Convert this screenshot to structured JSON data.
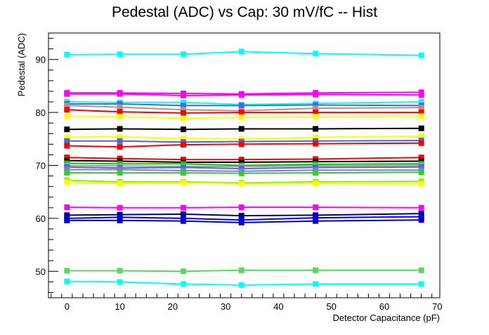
{
  "chart_data": {
    "type": "line",
    "title": "Pedestal (ADC) vs Cap: 30 mV/fC -- Hist",
    "xlabel": "Detector Capacitance (pF)",
    "ylabel": "Pedestal (ADC)",
    "xlim": [
      -3.5,
      70.5
    ],
    "ylim": [
      45,
      95
    ],
    "x_ticks": [
      0,
      10,
      20,
      30,
      40,
      50,
      60,
      70
    ],
    "y_ticks": [
      50,
      60,
      70,
      80,
      90
    ],
    "grid": false,
    "legend": "none",
    "x": [
      0,
      10,
      22,
      33,
      47,
      67
    ],
    "series": [
      {
        "color": "#00ffff",
        "values": [
          90.9,
          91.0,
          91.0,
          91.5,
          91.1,
          90.8
        ]
      },
      {
        "color": "#ff00ff",
        "values": [
          83.7,
          83.7,
          83.6,
          83.5,
          83.7,
          83.8
        ]
      },
      {
        "color": "#ff00ff",
        "values": [
          83.5,
          83.5,
          83.2,
          83.3,
          83.4,
          83.3
        ]
      },
      {
        "color": "#00ffff",
        "values": [
          82.0,
          81.9,
          81.9,
          81.5,
          81.7,
          82.0
        ]
      },
      {
        "color": "#4169e1",
        "values": [
          81.6,
          81.6,
          81.3,
          81.3,
          81.4,
          81.3
        ]
      },
      {
        "color": "#bc8f8f",
        "values": [
          81.3,
          81.0,
          80.5,
          80.3,
          80.8,
          80.9
        ]
      },
      {
        "color": "#ff0000",
        "values": [
          80.5,
          80.1,
          79.9,
          80.0,
          80.0,
          80.0
        ]
      },
      {
        "color": "#ffff00",
        "values": [
          79.3,
          79.2,
          78.9,
          79.1,
          79.2,
          79.3
        ]
      },
      {
        "color": "#000000",
        "values": [
          76.8,
          76.9,
          76.8,
          76.9,
          76.9,
          77.0
        ]
      },
      {
        "color": "#ffff00",
        "values": [
          75.3,
          75.4,
          75.1,
          75.0,
          75.3,
          75.5
        ]
      },
      {
        "color": "#4169e1",
        "values": [
          74.6,
          74.6,
          74.4,
          74.5,
          74.6,
          74.7
        ]
      },
      {
        "color": "#ff0000",
        "values": [
          73.7,
          73.5,
          73.9,
          74.0,
          74.1,
          74.2
        ]
      },
      {
        "color": "#ff0000",
        "values": [
          71.5,
          71.3,
          71.1,
          71.1,
          71.2,
          71.5
        ]
      },
      {
        "color": "#000000",
        "values": [
          70.9,
          70.8,
          70.6,
          70.6,
          70.7,
          70.8
        ]
      },
      {
        "color": "#00cc00",
        "values": [
          70.4,
          70.3,
          70.3,
          70.0,
          70.2,
          70.3
        ]
      },
      {
        "color": "#a0a0a0",
        "values": [
          70.0,
          69.9,
          69.8,
          69.8,
          69.9,
          70.0
        ]
      },
      {
        "color": "#4169e1",
        "values": [
          69.7,
          69.5,
          69.6,
          69.4,
          69.6,
          69.7
        ]
      },
      {
        "color": "#9370db",
        "values": [
          69.2,
          69.2,
          69.0,
          68.9,
          69.1,
          69.1
        ]
      },
      {
        "color": "#32cd32",
        "values": [
          68.6,
          68.6,
          68.6,
          68.5,
          68.6,
          68.7
        ]
      },
      {
        "color": "#7cfc00",
        "values": [
          67.2,
          66.9,
          66.9,
          66.7,
          66.9,
          67.0
        ]
      },
      {
        "color": "#ffff00",
        "values": [
          66.8,
          66.6,
          66.7,
          66.5,
          66.6,
          66.5
        ]
      },
      {
        "color": "#ff00ff",
        "values": [
          62.1,
          62.0,
          62.0,
          62.1,
          62.1,
          62.0
        ]
      },
      {
        "color": "#000080",
        "values": [
          60.6,
          60.7,
          60.8,
          60.5,
          60.6,
          60.9
        ]
      },
      {
        "color": "#0000ff",
        "values": [
          60.0,
          60.2,
          60.0,
          59.7,
          60.1,
          60.3
        ]
      },
      {
        "color": "#0000cc",
        "values": [
          59.6,
          59.6,
          59.5,
          59.2,
          59.5,
          59.7
        ]
      },
      {
        "color": "#5cd65c",
        "values": [
          50.1,
          50.1,
          50.0,
          50.2,
          50.2,
          50.2
        ]
      },
      {
        "color": "#00ffff",
        "values": [
          48.1,
          48.0,
          47.6,
          47.4,
          47.6,
          47.6
        ]
      }
    ]
  }
}
